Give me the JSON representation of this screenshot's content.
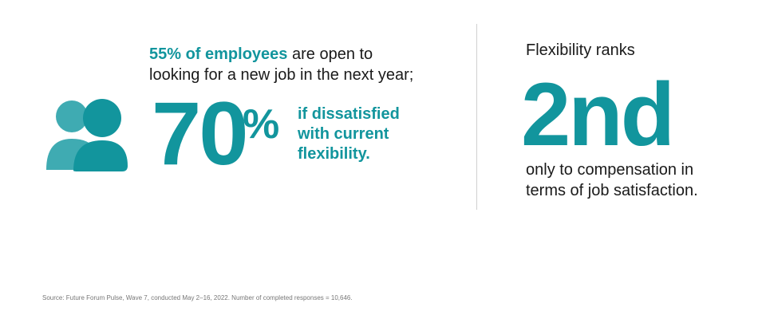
{
  "left": {
    "headline_highlight": "55% of employees",
    "headline_rest": "are open to",
    "headline_line2": "looking for a new job in the next year;",
    "big_number": "70",
    "big_unit": "%",
    "side_lines": [
      "if dissatisfied",
      "with current",
      "flexibility."
    ]
  },
  "right": {
    "intro": "Flexibility ranks",
    "rank": "2nd",
    "lines": [
      "only to compensation in",
      "terms of job satisfaction."
    ]
  },
  "source": "Source: Future Forum Pulse, Wave 7, conducted May 2–16, 2022. Number of completed responses = 10,646."
}
